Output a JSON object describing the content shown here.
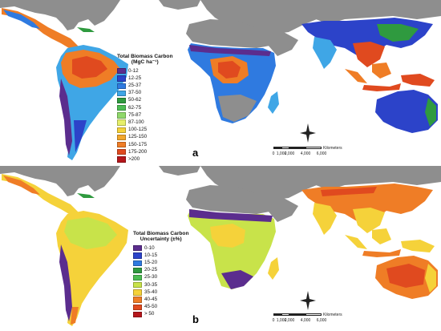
{
  "colors": {
    "ocean": "#ffffff",
    "no_data_land": "#8e8e8e",
    "scale": "#222222"
  },
  "panel_a": {
    "letter": "a",
    "legend": {
      "title_line1": "Total Biomass Carbon",
      "title_line2": "(MgC ha⁻¹)",
      "classes": [
        {
          "label": "0-12",
          "color": "#5b2d8e"
        },
        {
          "label": "12-25",
          "color": "#2c43c9"
        },
        {
          "label": "25-37",
          "color": "#2f7ae0"
        },
        {
          "label": "37-50",
          "color": "#3fa6e6"
        },
        {
          "label": "50-62",
          "color": "#2f9a3f"
        },
        {
          "label": "62-75",
          "color": "#4cbd53"
        },
        {
          "label": "75-87",
          "color": "#8fd86a"
        },
        {
          "label": "87-100",
          "color": "#e6ef6a"
        },
        {
          "label": "100-125",
          "color": "#f5d23a"
        },
        {
          "label": "125-150",
          "color": "#f2a72c"
        },
        {
          "label": "150-175",
          "color": "#ef7d26"
        },
        {
          "label": "175-200",
          "color": "#e04a1f"
        },
        {
          "label": ">200",
          "color": "#b5161b"
        }
      ]
    },
    "scale": {
      "units": "Kilometers",
      "ticks": [
        "0",
        "1,000",
        "2,000",
        "4,000",
        "6,000"
      ]
    },
    "north_arrow": "N"
  },
  "panel_b": {
    "letter": "b",
    "legend": {
      "title_line1": "Total Biomass Carbon",
      "title_line2": "Uncertainty (±%)",
      "classes": [
        {
          "label": "0-10",
          "color": "#5b2d8e"
        },
        {
          "label": "10-15",
          "color": "#2c43c9"
        },
        {
          "label": "15-20",
          "color": "#2f7ae0"
        },
        {
          "label": "20-25",
          "color": "#2f9a3f"
        },
        {
          "label": "25-30",
          "color": "#4cbd53"
        },
        {
          "label": "30-35",
          "color": "#c8e34a"
        },
        {
          "label": "35-40",
          "color": "#f5d23a"
        },
        {
          "label": "40-45",
          "color": "#ef7d26"
        },
        {
          "label": "45-50",
          "color": "#e04a1f"
        },
        {
          "label": "> 50",
          "color": "#b5161b"
        }
      ]
    },
    "scale": {
      "units": "Kilometers",
      "ticks": [
        "0",
        "1,000",
        "2,000",
        "4,000",
        "6,000"
      ]
    },
    "north_arrow": "N"
  }
}
